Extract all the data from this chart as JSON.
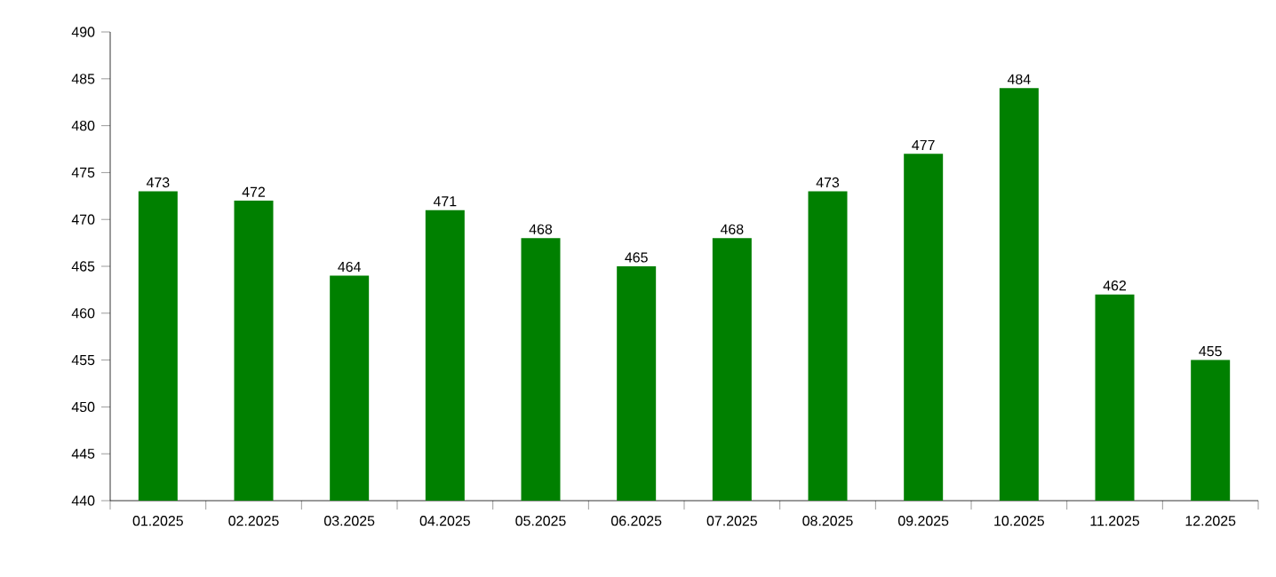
{
  "chart_data": {
    "type": "bar",
    "categories": [
      "01.2025",
      "02.2025",
      "03.2025",
      "04.2025",
      "05.2025",
      "06.2025",
      "07.2025",
      "08.2025",
      "09.2025",
      "10.2025",
      "11.2025",
      "12.2025"
    ],
    "values": [
      473,
      472,
      464,
      471,
      468,
      465,
      468,
      473,
      477,
      484,
      462,
      455
    ],
    "color": "#008000",
    "ylim": [
      440,
      490
    ],
    "yticks": [
      440,
      445,
      450,
      455,
      460,
      465,
      470,
      475,
      480,
      485,
      490
    ],
    "data_labels": true,
    "grid": false
  }
}
